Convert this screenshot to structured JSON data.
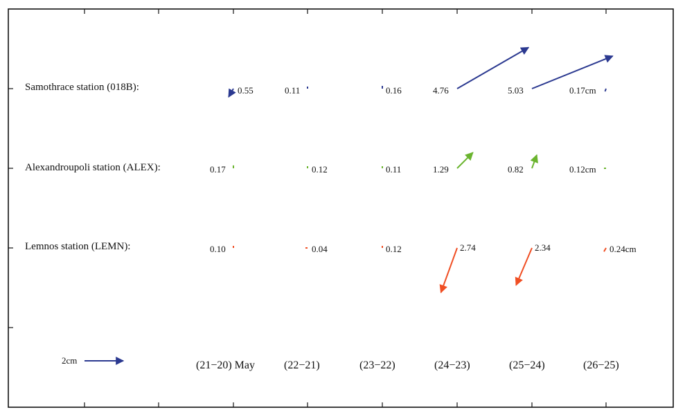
{
  "chart_data": {
    "type": "vector-field",
    "unit": "cm",
    "periods": [
      "(21−20) May",
      "(22−21)",
      "(23−22)",
      "(24−23)",
      "(25−24)",
      "(26−25)"
    ],
    "stations": [
      {
        "label": "Samothrace station (018B):",
        "color": "#2b3990",
        "magnitudes": [
          "0.55",
          "0.11",
          "0.16",
          "4.76",
          "5.03",
          "0.17cm"
        ],
        "directions_deg": [
          240,
          90,
          90,
          30,
          22,
          250
        ]
      },
      {
        "label": "Alexandroupoli station (ALEX):",
        "color": "#6ab42e",
        "magnitudes": [
          "0.17",
          "0.12",
          "0.11",
          "1.29",
          "0.82",
          "0.12cm"
        ],
        "directions_deg": [
          90,
          90,
          90,
          45,
          70,
          180
        ]
      },
      {
        "label": "Lemnos station (LEMN):",
        "color": "#f04e23",
        "magnitudes": [
          "0.10",
          "0.04",
          "0.12",
          "2.74",
          "2.34",
          "0.24cm"
        ],
        "directions_deg": [
          90,
          180,
          90,
          250,
          247,
          240
        ]
      }
    ],
    "scale": {
      "label": "2cm",
      "value": 2,
      "color": "#2b3990"
    }
  }
}
